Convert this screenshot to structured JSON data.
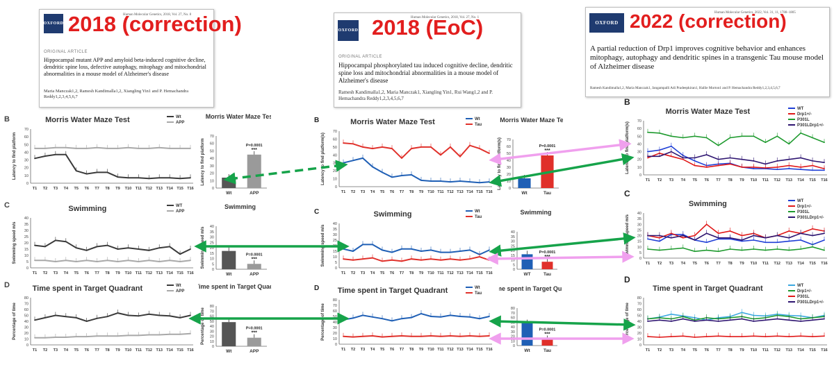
{
  "papers": {
    "p2018c": {
      "tag": "2018 (correction)",
      "logo": "OXFORD",
      "journal": "Human Molecular Genetics, 2018, Vol. 27, No. 8",
      "kind": "ORIGINAL ARTICLE",
      "title": "Hippocampal mutant APP and amyloid beta-induced cognitive decline, dendritic spine loss, defective autophagy, mitophagy and mitochondrial abnormalities in a mouse model of Alzheimer's disease",
      "authors": "Maria Manczak1,2, Ramesh Kandimalla1,2, Xiangling Yin1 and P. Hemachandra Reddy1,2,3,4,5,6,7"
    },
    "p2018e": {
      "tag": "2018 (EoC)",
      "logo": "OXFORD",
      "journal": "Human Molecular Genetics, 2018, Vol. 27, No. 1",
      "kind": "ORIGINAL ARTICLE",
      "title": "Hippocampal phosphorylated tau induced cognitive decline, dendritic spine loss and mitochondrial abnormalities in a mouse model of Alzheimer's disease",
      "authors": "Ramesh Kandimalla1,2, Maria Manczak1, Xiangling Yin1, Rui Wang1,2 and P. Hemachandra Reddy1,2,3,4,5,6,7"
    },
    "p2022c": {
      "tag": "2022 (correction)",
      "logo": "OXFORD",
      "journal": "Human Molecular Genetics, 2022, Vol. 31, 11, 1788–1805",
      "title": "A partial reduction of Drp1 improves cognitive behavior and enhances mitophagy, autophagy and dendritic spines in a transgenic Tau mouse model of Alzheimer disease",
      "authors": "Ramesh Kandimalla1,2, Maria Manczak1, Jangampalli Adi Pradeepkiran1, Hallie Morton1 and P. Hemachandra Reddy1,2,3,4,5,6,7"
    }
  },
  "labels": {
    "left_B": "B",
    "left_C": "C",
    "left_D": "D",
    "mid_B": "B",
    "mid_C": "C",
    "mid_D": "D",
    "right_B": "B",
    "right_C": "C",
    "right_D": "D"
  },
  "chart_data": [
    {
      "id": "left-mwm",
      "type": "line",
      "title": "Morris Water Maze Test",
      "ylabel": "Latency to find platform",
      "ylim": [
        0,
        70
      ],
      "yticks": [
        0,
        10,
        20,
        30,
        40,
        50,
        60,
        70
      ],
      "categories": [
        "T1",
        "T2",
        "T3",
        "T4",
        "T5",
        "T6",
        "T7",
        "T8",
        "T9",
        "T10",
        "T11",
        "T12",
        "T13",
        "T14",
        "T15",
        "T16"
      ],
      "series": [
        {
          "name": "Wt",
          "color": "#3a3a3a",
          "values": [
            32,
            35,
            37,
            37,
            16,
            12,
            14,
            14,
            8,
            7,
            7,
            6,
            7,
            7,
            6,
            7
          ]
        },
        {
          "name": "APP",
          "color": "#a8a8a8",
          "values": [
            45,
            45,
            46,
            46,
            45,
            45,
            46,
            45,
            45,
            46,
            45,
            45,
            46,
            45,
            45,
            45
          ]
        }
      ]
    },
    {
      "id": "left-mwm-bar",
      "type": "bar",
      "title": "Morris Water Maze Test",
      "ylabel": "Latency to find platform",
      "ylim": [
        0,
        70
      ],
      "yticks": [
        0,
        10,
        20,
        30,
        40,
        50,
        60,
        70
      ],
      "categories": [
        "Wt",
        "APP"
      ],
      "values": [
        14,
        45
      ],
      "colors": [
        "#555555",
        "#9a9a9a"
      ],
      "annotation": "P=0.0001",
      "stars": "***"
    },
    {
      "id": "left-swim",
      "type": "line",
      "title": "Swimming",
      "ylabel": "Swimming speed m/s",
      "ylim": [
        0,
        40
      ],
      "yticks": [
        0,
        5,
        10,
        15,
        20,
        25,
        30,
        35,
        40
      ],
      "categories": [
        "T1",
        "T2",
        "T3",
        "T4",
        "T5",
        "T6",
        "T7",
        "T8",
        "T9",
        "T10",
        "T11",
        "T12",
        "T13",
        "T14",
        "T15",
        "T16"
      ],
      "series": [
        {
          "name": "WT",
          "color": "#3a3a3a",
          "values": [
            18,
            17,
            22,
            21,
            16,
            14,
            17,
            18,
            15,
            16,
            15,
            14,
            16,
            17,
            11,
            15
          ]
        },
        {
          "name": "APP",
          "color": "#a8a8a8",
          "values": [
            6,
            6,
            5,
            6,
            5,
            6,
            5,
            6,
            5,
            6,
            5,
            6,
            5,
            6,
            5,
            6
          ]
        }
      ]
    },
    {
      "id": "left-swim-bar",
      "type": "bar",
      "title": "Swimming",
      "ylabel": "Swimming speed m/s",
      "ylim": [
        0,
        40
      ],
      "yticks": [
        0,
        5,
        10,
        15,
        20,
        25,
        30,
        35,
        40
      ],
      "categories": [
        "Wt",
        "APP"
      ],
      "values": [
        17,
        5
      ],
      "colors": [
        "#555555",
        "#9a9a9a"
      ],
      "annotation": "P=0.0001",
      "stars": "***"
    },
    {
      "id": "left-tq",
      "type": "line",
      "title": "Time spent in Target Quadrant",
      "ylabel": "Percentage of time",
      "ylim": [
        0,
        80
      ],
      "yticks": [
        0,
        10,
        20,
        30,
        40,
        50,
        60,
        70,
        80
      ],
      "categories": [
        "T1",
        "T2",
        "T3",
        "T4",
        "T5",
        "T6",
        "T7",
        "T8",
        "T9",
        "T10",
        "T11",
        "T12",
        "T13",
        "T14",
        "T15",
        "T16"
      ],
      "series": [
        {
          "name": "Wt",
          "color": "#3a3a3a",
          "values": [
            42,
            46,
            50,
            48,
            46,
            40,
            45,
            48,
            54,
            50,
            49,
            52,
            50,
            49,
            46,
            50
          ]
        },
        {
          "name": "APP",
          "color": "#a8a8a8",
          "values": [
            12,
            12,
            13,
            13,
            14,
            14,
            15,
            15,
            15,
            16,
            16,
            17,
            17,
            18,
            18,
            19
          ]
        }
      ]
    },
    {
      "id": "left-tq-bar",
      "type": "bar",
      "title": "Time spent in Target Quadrant",
      "ylabel": "Percentage of time",
      "ylim": [
        0,
        80
      ],
      "yticks": [
        0,
        10,
        20,
        30,
        40,
        50,
        60,
        70,
        80
      ],
      "categories": [
        "Wt",
        "APP"
      ],
      "values": [
        48,
        17
      ],
      "colors": [
        "#555555",
        "#9a9a9a"
      ],
      "annotation": "P=0.0001",
      "stars": "***"
    },
    {
      "id": "mid-mwm",
      "type": "line",
      "title": "Morris Water Maze Test",
      "ylabel": "Latency to find platform(s)",
      "ylim": [
        0,
        70
      ],
      "yticks": [
        0,
        10,
        20,
        30,
        40,
        50,
        60,
        70
      ],
      "categories": [
        "T1",
        "T2",
        "T3",
        "T4",
        "T5",
        "T6",
        "T7",
        "T8",
        "T9",
        "T10",
        "T11",
        "T12",
        "T13",
        "T14",
        "T15",
        "T16"
      ],
      "series": [
        {
          "name": "Wt",
          "color": "#1f5fb5",
          "values": [
            30,
            33,
            36,
            25,
            18,
            12,
            14,
            15,
            8,
            7,
            7,
            6,
            7,
            6,
            5,
            6
          ]
        },
        {
          "name": "Tau",
          "color": "#e0302a",
          "values": [
            55,
            54,
            50,
            48,
            50,
            48,
            36,
            48,
            50,
            50,
            40,
            50,
            38,
            52,
            48,
            42
          ]
        }
      ]
    },
    {
      "id": "mid-mwm-bar",
      "type": "bar",
      "title": "Morris Water Maze Test",
      "ylabel": "Latency to find platform(s)",
      "ylim": [
        0,
        70
      ],
      "yticks": [
        0,
        10,
        20,
        30,
        40,
        50,
        60,
        70
      ],
      "categories": [
        "Wt",
        "Tau"
      ],
      "values": [
        14,
        47
      ],
      "colors": [
        "#1f5fb5",
        "#e0302a"
      ],
      "annotation": "P=0.0001",
      "stars": "***"
    },
    {
      "id": "mid-swim",
      "type": "line",
      "title": "Swimming",
      "ylabel": "Swimming speed m/s",
      "ylim": [
        0,
        40
      ],
      "yticks": [
        0,
        5,
        10,
        15,
        20,
        25,
        30,
        35,
        40
      ],
      "categories": [
        "T1",
        "T2",
        "T3",
        "T4",
        "T5",
        "T6",
        "T7",
        "T8",
        "T9",
        "T10",
        "T11",
        "T12",
        "T13",
        "T14",
        "T15",
        "T16"
      ],
      "series": [
        {
          "name": "Wt",
          "color": "#1f5fb5",
          "values": [
            17,
            15,
            21,
            21,
            16,
            14,
            17,
            17,
            15,
            16,
            14,
            14,
            15,
            16,
            12,
            16
          ]
        },
        {
          "name": "Tau",
          "color": "#e0302a",
          "values": [
            8,
            7,
            8,
            9,
            6,
            7,
            6,
            8,
            7,
            8,
            7,
            8,
            7,
            8,
            10,
            7
          ]
        }
      ]
    },
    {
      "id": "mid-swim-bar",
      "type": "bar",
      "title": "Swimming",
      "ylabel": "",
      "ylim": [
        0,
        40
      ],
      "yticks": [
        0,
        5,
        10,
        15,
        20,
        25,
        30,
        35,
        40
      ],
      "categories": [
        "WT",
        "Tau"
      ],
      "values": [
        16,
        8
      ],
      "colors": [
        "#1f5fb5",
        "#e0302a"
      ],
      "annotation": "P=0.0001",
      "stars": "***"
    },
    {
      "id": "mid-tq",
      "type": "line",
      "title": "Time spent in Target Quadrant",
      "ylabel": "Percentage of time",
      "ylim": [
        0,
        80
      ],
      "yticks": [
        0,
        10,
        20,
        30,
        40,
        50,
        60,
        70,
        80
      ],
      "categories": [
        "T1",
        "T2",
        "T3",
        "T4",
        "T5",
        "T6",
        "T7",
        "T8",
        "T9",
        "T10",
        "T11",
        "T12",
        "T13",
        "T14",
        "T15",
        "T16"
      ],
      "series": [
        {
          "name": "Wt",
          "color": "#1f5fb5",
          "values": [
            44,
            47,
            52,
            49,
            46,
            42,
            46,
            48,
            55,
            50,
            49,
            52,
            50,
            49,
            46,
            50
          ]
        },
        {
          "name": "Tau",
          "color": "#e0302a",
          "values": [
            14,
            13,
            14,
            15,
            13,
            14,
            15,
            14,
            14,
            15,
            14,
            15,
            14,
            15,
            14,
            15
          ]
        }
      ]
    },
    {
      "id": "mid-tq-bar",
      "type": "bar",
      "title": "Time spent in Target Quadrant",
      "ylabel": "",
      "ylim": [
        0,
        80
      ],
      "yticks": [
        0,
        10,
        20,
        30,
        40,
        50,
        60,
        70,
        80
      ],
      "categories": [
        "Wt",
        "Tau"
      ],
      "values": [
        48,
        14
      ],
      "colors": [
        "#1f5fb5",
        "#e0302a"
      ],
      "annotation": "P=0.0001",
      "stars": "***"
    },
    {
      "id": "right-mwm",
      "type": "line",
      "title": "Morris Water Maze Test",
      "ylabel": "Latency to find platform(s)",
      "ylim": [
        0,
        70
      ],
      "yticks": [
        0,
        10,
        20,
        30,
        40,
        50,
        60,
        70
      ],
      "categories": [
        "T1",
        "T2",
        "T3",
        "T4",
        "T5",
        "T6",
        "T7",
        "T8",
        "T9",
        "T10",
        "T11",
        "T12",
        "T13",
        "T14",
        "T15",
        "T16"
      ],
      "series": [
        {
          "name": "WT",
          "color": "#1f3fd6",
          "values": [
            30,
            32,
            37,
            25,
            18,
            12,
            14,
            15,
            10,
            8,
            8,
            7,
            8,
            7,
            6,
            6
          ]
        },
        {
          "name": "Drp1+/-",
          "color": "#e01818",
          "values": [
            22,
            28,
            24,
            20,
            12,
            10,
            12,
            14,
            10,
            10,
            9,
            10,
            12,
            10,
            12,
            8
          ]
        },
        {
          "name": "P301L",
          "color": "#1e9a2e",
          "values": [
            55,
            54,
            50,
            48,
            50,
            48,
            38,
            48,
            50,
            50,
            42,
            50,
            40,
            54,
            48,
            42
          ]
        },
        {
          "name": "P301LDrp1+/-",
          "color": "#2d1470",
          "values": [
            24,
            24,
            30,
            22,
            22,
            26,
            20,
            22,
            20,
            18,
            14,
            18,
            20,
            22,
            18,
            16
          ]
        }
      ]
    },
    {
      "id": "right-swim",
      "type": "line",
      "title": "Swimming",
      "ylabel": "Swimming speed m/s",
      "ylim": [
        0,
        40
      ],
      "yticks": [
        0,
        5,
        10,
        15,
        20,
        25,
        30,
        35,
        40
      ],
      "categories": [
        "T1",
        "T2",
        "T3",
        "T4",
        "T5",
        "T6",
        "T7",
        "T8",
        "T9",
        "T10",
        "T11",
        "T12",
        "T13",
        "T14",
        "T15",
        "T16"
      ],
      "series": [
        {
          "name": "WT",
          "color": "#1f3fd6",
          "values": [
            17,
            15,
            21,
            21,
            16,
            14,
            17,
            17,
            15,
            16,
            14,
            14,
            15,
            16,
            12,
            16
          ]
        },
        {
          "name": "Drp1+/-",
          "color": "#e01818",
          "values": [
            20,
            18,
            22,
            18,
            20,
            30,
            22,
            24,
            20,
            22,
            18,
            20,
            24,
            22,
            26,
            24
          ]
        },
        {
          "name": "P301L",
          "color": "#1e9a2e",
          "values": [
            8,
            7,
            8,
            9,
            6,
            7,
            6,
            8,
            7,
            8,
            7,
            8,
            7,
            8,
            10,
            7
          ]
        },
        {
          "name": "P301LDrp1+/-",
          "color": "#2d1470",
          "values": [
            20,
            20,
            18,
            20,
            16,
            22,
            18,
            18,
            16,
            20,
            18,
            20,
            18,
            22,
            20,
            22
          ]
        }
      ]
    },
    {
      "id": "right-tq",
      "type": "line",
      "title": "Time spent in Target Quadrant",
      "ylabel": "Percentage of time",
      "ylim": [
        0,
        80
      ],
      "yticks": [
        0,
        10,
        20,
        30,
        40,
        50,
        60,
        70,
        80
      ],
      "categories": [
        "T1",
        "T2",
        "T3",
        "T4",
        "T5",
        "T6",
        "T7",
        "T8",
        "T9",
        "T10",
        "T11",
        "T12",
        "T13",
        "T14",
        "T15",
        "T16"
      ],
      "series": [
        {
          "name": "WT",
          "color": "#3aa8e0",
          "values": [
            44,
            47,
            52,
            49,
            46,
            42,
            46,
            48,
            55,
            50,
            49,
            52,
            50,
            49,
            46,
            50
          ]
        },
        {
          "name": "Drp1+/-",
          "color": "#1e9a2e",
          "values": [
            44,
            46,
            44,
            48,
            42,
            46,
            44,
            46,
            48,
            44,
            46,
            50,
            48,
            44,
            46,
            48
          ]
        },
        {
          "name": "P301L",
          "color": "#e01818",
          "values": [
            14,
            13,
            14,
            15,
            13,
            14,
            15,
            14,
            14,
            15,
            14,
            15,
            14,
            15,
            14,
            15
          ]
        },
        {
          "name": "P301LDrp1+/-",
          "color": "#2d1470",
          "values": [
            40,
            42,
            40,
            44,
            40,
            42,
            40,
            42,
            44,
            40,
            42,
            44,
            42,
            40,
            42,
            44
          ]
        }
      ]
    }
  ]
}
